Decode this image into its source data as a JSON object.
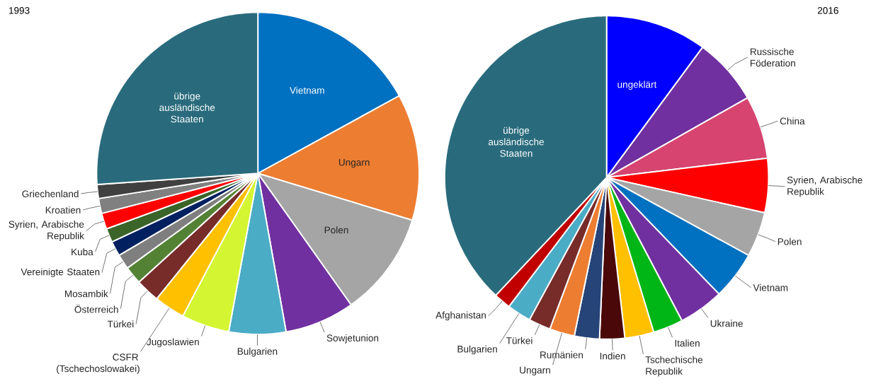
{
  "chart_data": [
    {
      "type": "pie",
      "title": "1993",
      "categories": [
        "Vietnam",
        "Ungarn",
        "Polen",
        "Sowjetunion",
        "Bulgarien",
        "Jugoslawien",
        "CSFR (Tschechoslowakei)",
        "Türkei",
        "Österreich",
        "Mosambik",
        "Vereinigte Staaten",
        "Kuba",
        "Syrien, Arabische Republik",
        "Kroatien",
        "Griechenland",
        "übrige ausländische Staaten"
      ],
      "values": [
        17,
        12.7,
        10.5,
        7,
        5.7,
        4.8,
        3.1,
        2.4,
        1.8,
        1.5,
        1.5,
        1.4,
        1.6,
        1.5,
        1.4,
        26.1
      ],
      "colors": [
        "#0070c0",
        "#ed7d31",
        "#a5a5a5",
        "#7030a0",
        "#4bacc6",
        "#d4f531",
        "#ffc000",
        "#772c2a",
        "#548235",
        "#7f7f7f",
        "#002060",
        "#3a6428",
        "#ff0000",
        "#808080",
        "#404040",
        "#296b7c"
      ]
    },
    {
      "type": "pie",
      "title": "2016",
      "categories": [
        "ungeklärt",
        "Russische Föderation",
        "China",
        "Syrien, Arabische Republik",
        "Polen",
        "Vietnam",
        "Ukraine",
        "Italien",
        "Tschechische Republik",
        "Indien",
        "Rumänien",
        "Ungarn",
        "Türkei",
        "Bulgarien",
        "Afghanistan",
        "übrige ausländische Staaten"
      ],
      "values": [
        10.1,
        6.7,
        6.3,
        5.4,
        4.5,
        4.8,
        4.5,
        3,
        2.9,
        2.5,
        2.5,
        2.5,
        2.2,
        2.4,
        1.7,
        38
      ],
      "colors": [
        "#0000ff",
        "#7030a0",
        "#d6446f",
        "#ff0000",
        "#a5a5a5",
        "#0070c0",
        "#7030a0",
        "#00b616",
        "#ffc000",
        "#4a0808",
        "#264478",
        "#ed7d31",
        "#772c2a",
        "#4bacc6",
        "#c00000",
        "#296b7c"
      ]
    }
  ]
}
